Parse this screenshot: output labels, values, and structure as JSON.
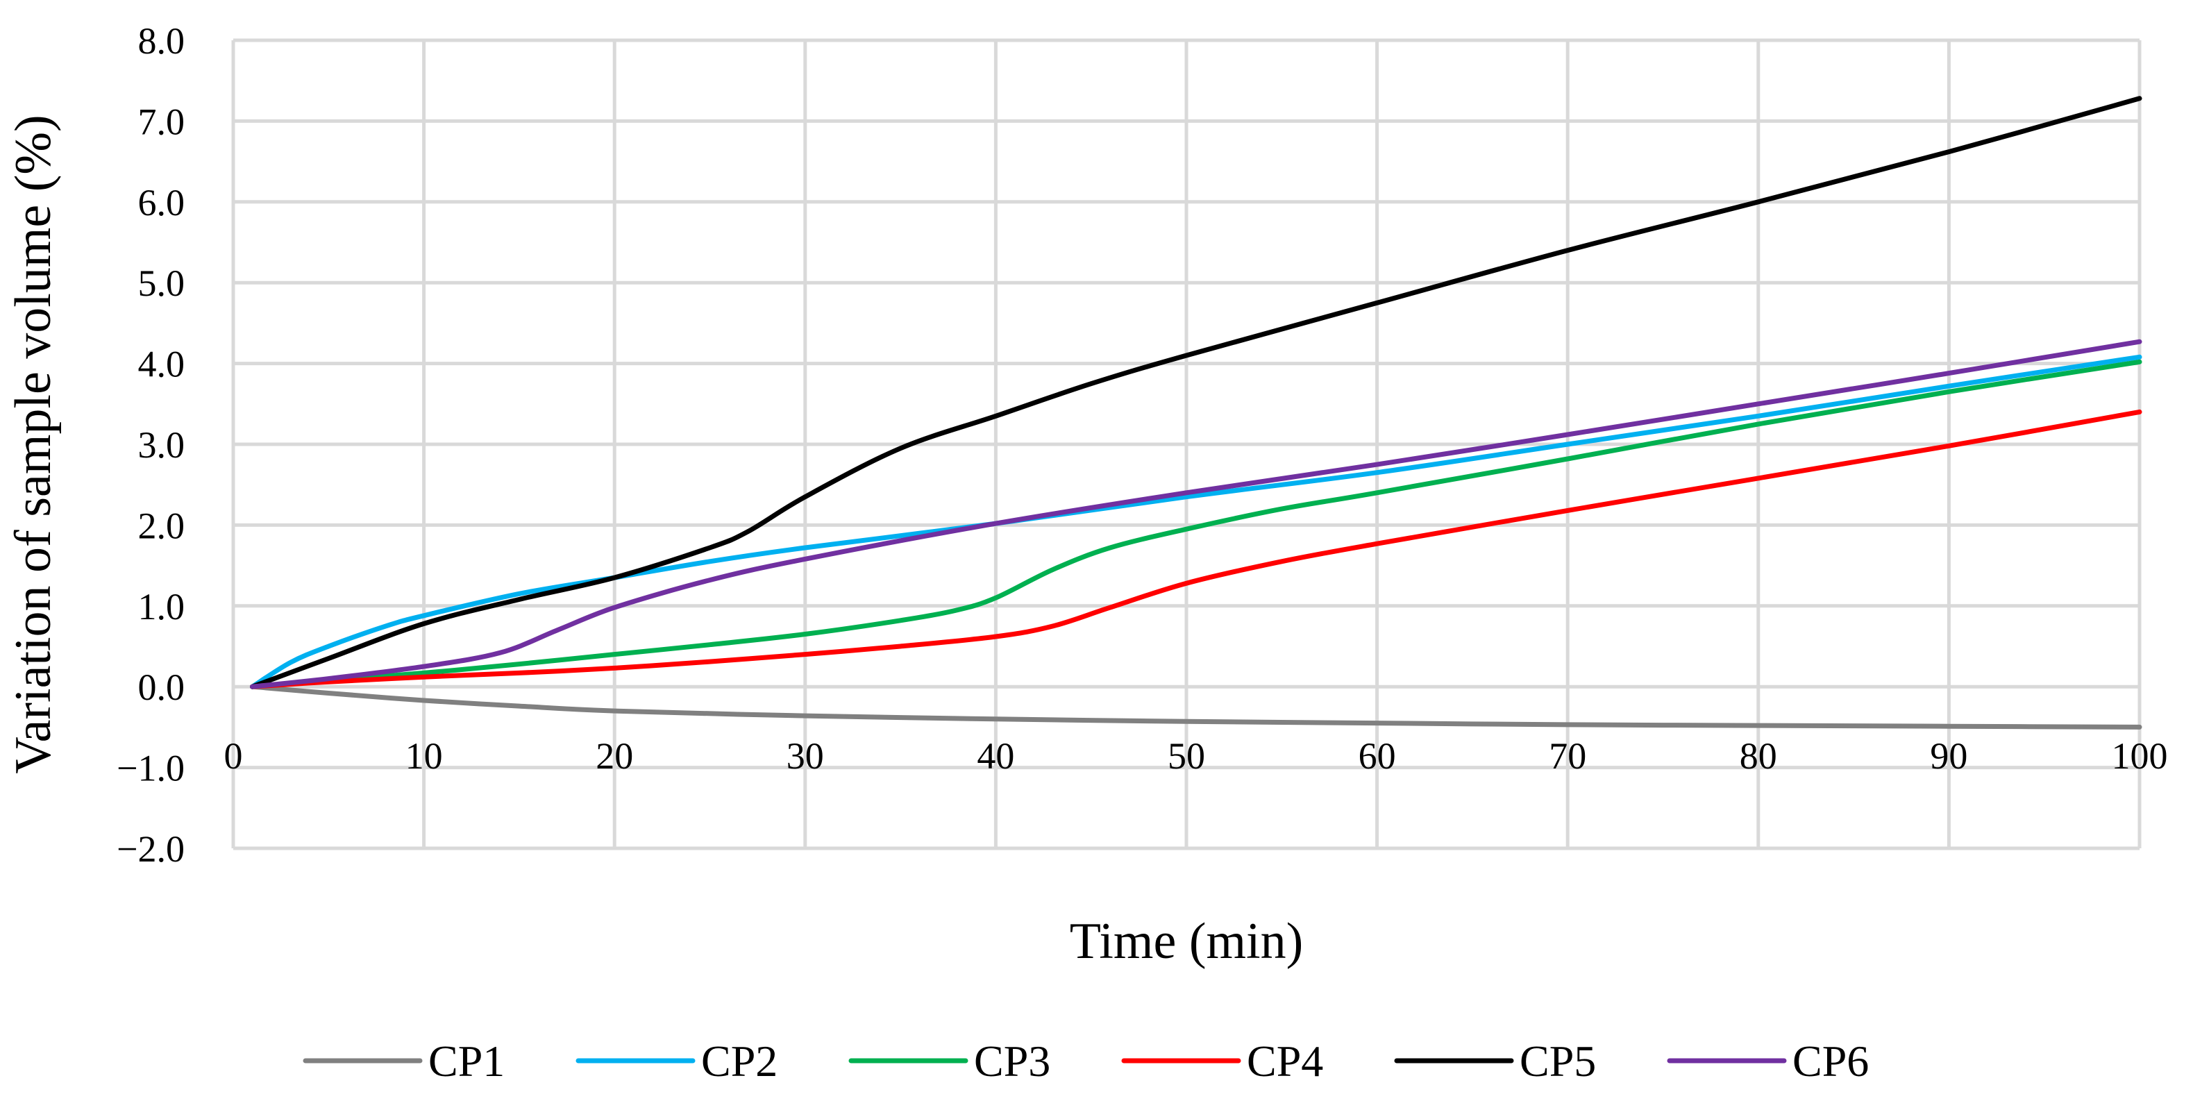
{
  "chart_data": {
    "type": "line",
    "title": "",
    "xlabel": "Time (min)",
    "ylabel": "Variation of sample volume  (%)",
    "xlim": [
      0,
      100
    ],
    "ylim": [
      -2,
      8
    ],
    "x_ticks": [
      0,
      10,
      20,
      30,
      40,
      50,
      60,
      70,
      80,
      90,
      100
    ],
    "y_ticks": [
      8,
      7,
      6,
      5,
      4,
      3,
      2,
      1,
      0,
      -1,
      -2
    ],
    "x_tick_labels": [
      "0",
      "10",
      "20",
      "30",
      "40",
      "50",
      "60",
      "70",
      "80",
      "90",
      "100"
    ],
    "y_tick_labels": [
      "8.0",
      "7.0",
      "6.0",
      "5.0",
      "4.0",
      "3.0",
      "2.0",
      "1.0",
      "0.0",
      "−1.0",
      "−2.0"
    ],
    "grid": true,
    "legend_position": "bottom",
    "series": [
      {
        "name": "CP1",
        "color": "#808080",
        "x": [
          1,
          5,
          10,
          15,
          20,
          30,
          40,
          50,
          60,
          70,
          80,
          90,
          100
        ],
        "y": [
          0.0,
          -0.08,
          -0.17,
          -0.24,
          -0.3,
          -0.36,
          -0.4,
          -0.43,
          -0.45,
          -0.47,
          -0.48,
          -0.49,
          -0.5
        ]
      },
      {
        "name": "CP2",
        "color": "#00b0f0",
        "x": [
          1,
          3,
          5,
          8,
          10,
          15,
          20,
          25,
          30,
          40,
          50,
          60,
          70,
          80,
          90,
          100
        ],
        "y": [
          0.0,
          0.3,
          0.5,
          0.75,
          0.88,
          1.15,
          1.35,
          1.55,
          1.72,
          2.02,
          2.35,
          2.65,
          3.0,
          3.35,
          3.72,
          4.08
        ]
      },
      {
        "name": "CP3",
        "color": "#00b050",
        "x": [
          1,
          5,
          10,
          15,
          20,
          25,
          30,
          35,
          38,
          40,
          43,
          46,
          50,
          55,
          60,
          70,
          80,
          90,
          100
        ],
        "y": [
          0.0,
          0.08,
          0.17,
          0.28,
          0.4,
          0.52,
          0.65,
          0.82,
          0.95,
          1.1,
          1.45,
          1.72,
          1.95,
          2.2,
          2.4,
          2.82,
          3.25,
          3.65,
          4.02
        ]
      },
      {
        "name": "CP4",
        "color": "#ff0000",
        "x": [
          1,
          5,
          10,
          15,
          20,
          25,
          30,
          35,
          40,
          43,
          46,
          50,
          55,
          60,
          70,
          80,
          90,
          100
        ],
        "y": [
          0.0,
          0.06,
          0.12,
          0.17,
          0.23,
          0.31,
          0.4,
          0.5,
          0.62,
          0.75,
          0.98,
          1.28,
          1.55,
          1.77,
          2.18,
          2.58,
          2.98,
          3.4
        ]
      },
      {
        "name": "CP5",
        "color": "#000000",
        "x": [
          1,
          5,
          10,
          15,
          20,
          25,
          27,
          30,
          35,
          40,
          45,
          50,
          60,
          70,
          80,
          90,
          100
        ],
        "y": [
          0.0,
          0.35,
          0.78,
          1.08,
          1.35,
          1.72,
          1.92,
          2.35,
          2.95,
          3.35,
          3.75,
          4.1,
          4.75,
          5.4,
          6.0,
          6.62,
          7.28
        ]
      },
      {
        "name": "CP6",
        "color": "#7030a0",
        "x": [
          1,
          5,
          10,
          14,
          17,
          20,
          25,
          30,
          40,
          50,
          60,
          70,
          80,
          90,
          100
        ],
        "y": [
          0.0,
          0.1,
          0.25,
          0.42,
          0.7,
          0.98,
          1.32,
          1.58,
          2.02,
          2.4,
          2.75,
          3.12,
          3.5,
          3.88,
          4.27
        ]
      }
    ]
  }
}
